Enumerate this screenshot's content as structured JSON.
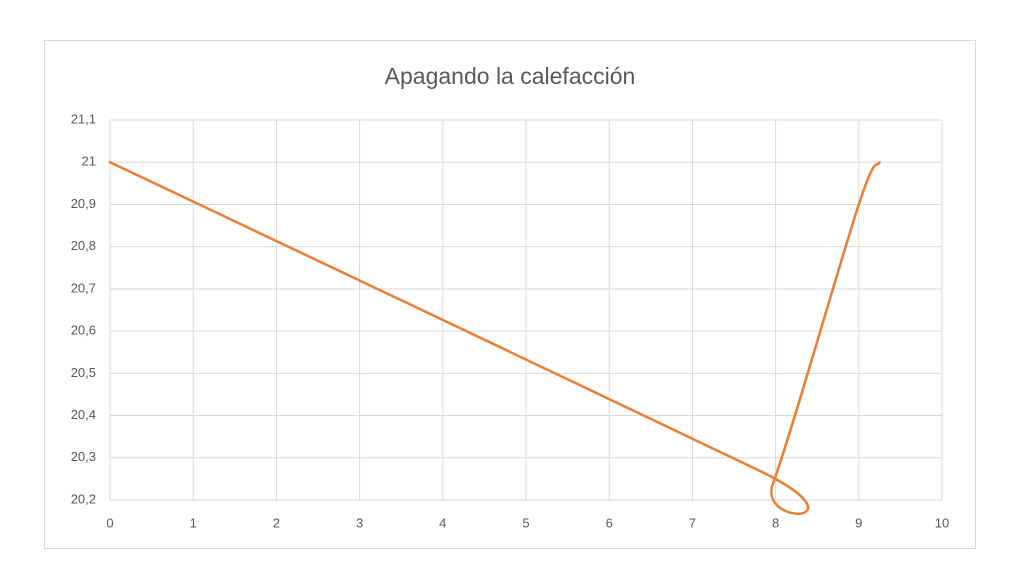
{
  "chart_data": {
    "type": "line",
    "title": "Apagando la calefacción",
    "x": [
      0,
      7.8,
      7.97,
      9,
      9.25
    ],
    "values": [
      21,
      20.27,
      20.24,
      20.9,
      21
    ],
    "color": "#ed7d31",
    "xlim": [
      0,
      10
    ],
    "xticks": [
      0,
      1,
      2,
      3,
      4,
      5,
      6,
      7,
      8,
      9,
      10
    ],
    "ylim": [
      20.2,
      21.1
    ],
    "yticks": [
      {
        "value": 20.2,
        "label": "20,2"
      },
      {
        "value": 20.3,
        "label": "20,3"
      },
      {
        "value": 20.4,
        "label": "20,4"
      },
      {
        "value": 20.5,
        "label": "20,5"
      },
      {
        "value": 20.6,
        "label": "20,6"
      },
      {
        "value": 20.7,
        "label": "20,7"
      },
      {
        "value": 20.8,
        "label": "20,8"
      },
      {
        "value": 20.9,
        "label": "20,9"
      },
      21,
      {
        "value": 21.1,
        "label": "21,1"
      }
    ],
    "grid": true
  }
}
